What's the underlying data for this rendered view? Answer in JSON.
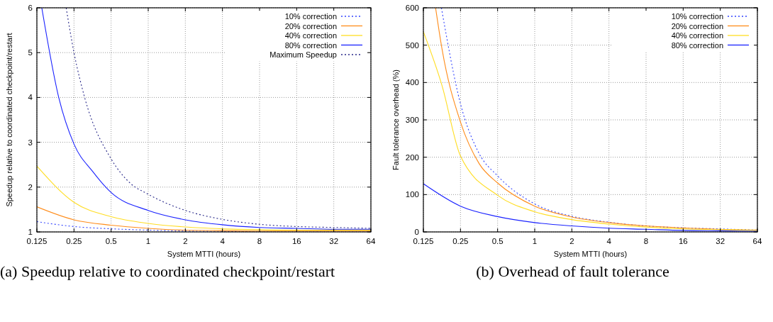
{
  "chart_data": [
    {
      "type": "line",
      "title": "(a) Speedup relative to coordinated checkpoint/restart",
      "xlabel": "System MTTI (hours)",
      "ylabel": "Speedup relative to coordinated checkpoint/restart",
      "log": "x",
      "xlim": [
        0.125,
        64
      ],
      "xticks": [
        0.125,
        0.25,
        0.5,
        1,
        2,
        4,
        8,
        16,
        32,
        64
      ],
      "ylim": [
        1,
        6
      ],
      "yticks": [
        1,
        2,
        3,
        4,
        5,
        6
      ],
      "grid": true,
      "legend": "top right",
      "series": [
        {
          "name": "10% correction",
          "color": "#3344ff",
          "line_style": "dotted",
          "x": [
            0.125,
            0.25,
            0.5,
            1,
            2,
            4,
            8,
            16,
            32,
            64
          ],
          "values": [
            1.23,
            1.12,
            1.07,
            1.04,
            1.02,
            1.01,
            1.0,
            1.0,
            1.0,
            1.0
          ]
        },
        {
          "name": "20% correction",
          "color": "#ff8c1a",
          "line_style": "solid",
          "x": [
            0.125,
            0.25,
            0.5,
            1,
            2,
            4,
            8,
            16,
            32,
            64
          ],
          "values": [
            1.56,
            1.27,
            1.15,
            1.08,
            1.04,
            1.03,
            1.02,
            1.02,
            1.02,
            1.02
          ]
        },
        {
          "name": "40% correction",
          "color": "#ffdd22",
          "line_style": "solid",
          "x": [
            0.125,
            0.25,
            0.5,
            1,
            2,
            4,
            8,
            16,
            32,
            64
          ],
          "values": [
            2.47,
            1.66,
            1.34,
            1.19,
            1.11,
            1.07,
            1.05,
            1.04,
            1.04,
            1.04
          ]
        },
        {
          "name": "80% correction",
          "color": "#1a22ff",
          "line_style": "solid",
          "x": [
            0.137,
            0.188,
            0.25,
            0.354,
            0.5,
            1,
            2,
            4,
            8,
            16,
            32,
            64
          ],
          "values": [
            6,
            4,
            2.96,
            2.35,
            1.88,
            1.48,
            1.27,
            1.16,
            1.1,
            1.08,
            1.06,
            1.06
          ]
        },
        {
          "name": "Maximum Speedup",
          "color": "#2a2a8a",
          "line_style": "dotted",
          "x": [
            0.216,
            0.25,
            0.305,
            0.5,
            0.707,
            1,
            2,
            4,
            8,
            16,
            32,
            64
          ],
          "values": [
            6,
            5,
            4,
            2.63,
            2.1,
            1.84,
            1.48,
            1.28,
            1.17,
            1.12,
            1.1,
            1.08
          ]
        }
      ]
    },
    {
      "type": "line",
      "title": "(b) Overhead of fault tolerance",
      "xlabel": "System MTTI (hours)",
      "ylabel": "Fault tolerance overhead (%)",
      "log": "x",
      "xlim": [
        0.125,
        64
      ],
      "xticks": [
        0.125,
        0.25,
        0.5,
        1,
        2,
        4,
        8,
        16,
        32,
        64
      ],
      "ylim": [
        0,
        600
      ],
      "yticks": [
        0,
        100,
        200,
        300,
        400,
        500,
        600
      ],
      "grid": true,
      "legend": "top right",
      "series": [
        {
          "name": "10% correction",
          "color": "#3344ff",
          "line_style": "dotted",
          "x": [
            0.175,
            0.25,
            0.354,
            0.5,
            1,
            2,
            4,
            8,
            16,
            32,
            64
          ],
          "values": [
            600,
            343,
            210,
            150,
            75,
            42,
            26,
            16,
            11,
            8,
            5
          ]
        },
        {
          "name": "20% correction",
          "color": "#ff8c1a",
          "line_style": "solid",
          "x": [
            0.157,
            0.177,
            0.25,
            0.354,
            0.5,
            1,
            2,
            4,
            8,
            16,
            32,
            64
          ],
          "values": [
            600,
            490,
            294,
            183,
            131,
            69,
            40,
            25,
            16,
            11,
            7,
            5
          ]
        },
        {
          "name": "40% correction",
          "color": "#ffdd22",
          "line_style": "solid",
          "x": [
            0.125,
            0.177,
            0.25,
            0.5,
            1,
            2,
            4,
            8,
            16,
            32,
            64
          ],
          "values": [
            536,
            392,
            203,
            98,
            54,
            33,
            21,
            13,
            8,
            6,
            4
          ]
        },
        {
          "name": "80% correction",
          "color": "#1a22ff",
          "line_style": "solid",
          "x": [
            0.125,
            0.25,
            0.5,
            1,
            2,
            4,
            8,
            16,
            32,
            64
          ],
          "values": [
            129,
            69,
            41,
            25,
            16,
            10,
            7,
            4,
            3,
            2
          ]
        }
      ]
    }
  ]
}
